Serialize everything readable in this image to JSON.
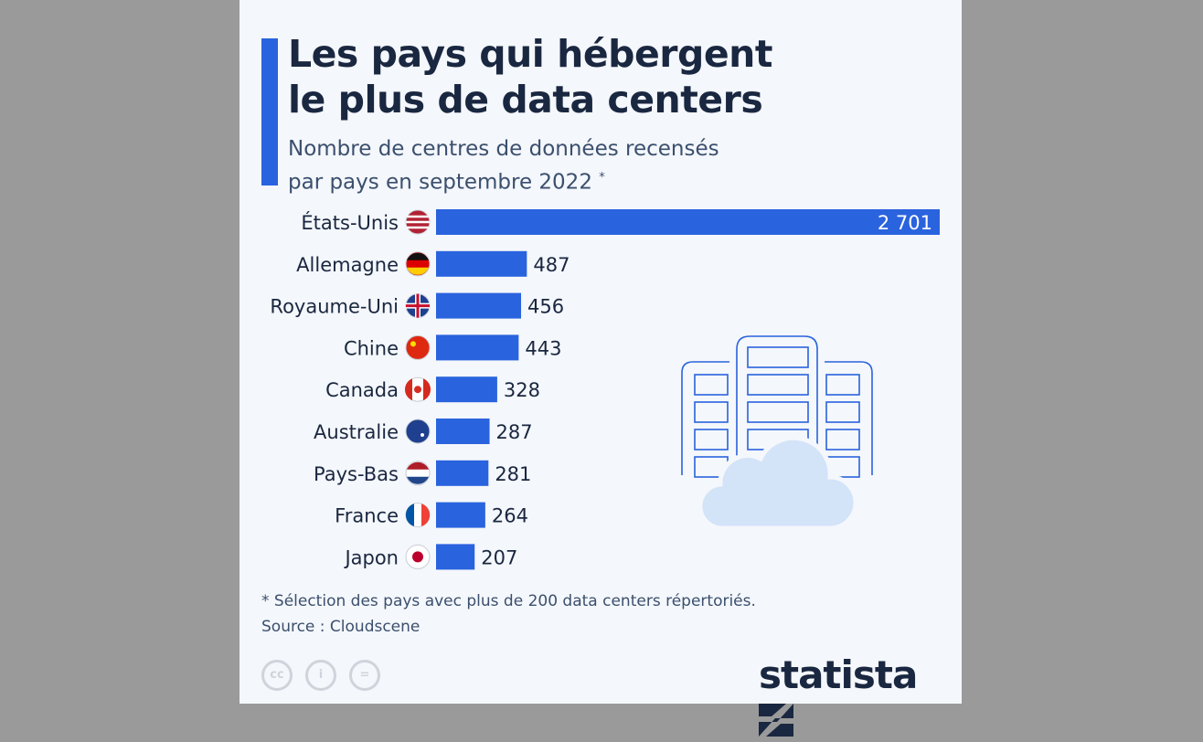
{
  "title": "Les pays qui hébergent\nle plus de data centers",
  "subtitle": "Nombre de centres de données recensés\npar pays en septembre 2022",
  "subtitle_mark": "*",
  "footnote": "* Sélection des pays avec plus de 200 data centers répertoriés.",
  "source": "Source : Cloudscene",
  "brand": "statista",
  "license_icons": [
    "cc",
    "i",
    "="
  ],
  "colors": {
    "bar": "#2a63de",
    "text": "#1a2740",
    "background": "#f4f7fb"
  },
  "chart_data": {
    "type": "bar",
    "orientation": "horizontal",
    "categories": [
      "États-Unis",
      "Allemagne",
      "Royaume-Uni",
      "Chine",
      "Canada",
      "Australie",
      "Pays-Bas",
      "France",
      "Japon"
    ],
    "values": [
      2701,
      487,
      456,
      443,
      328,
      287,
      281,
      264,
      207
    ],
    "value_labels": [
      "2 701",
      "487",
      "456",
      "443",
      "328",
      "287",
      "281",
      "264",
      "207"
    ],
    "flags": [
      "us",
      "de",
      "gb",
      "cn",
      "ca",
      "au",
      "nl",
      "fr",
      "jp"
    ],
    "xlim": [
      0,
      2701
    ]
  }
}
